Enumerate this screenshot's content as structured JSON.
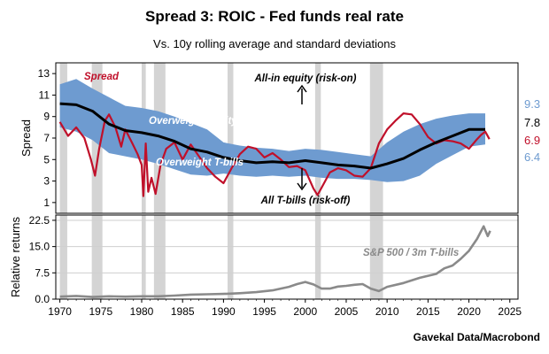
{
  "title": "Spread 3: ROIC - Fed funds real rate",
  "subtitle": "Vs. 10y rolling average and standard deviations",
  "source": "Gavekal Data/Macrobond",
  "colors": {
    "band": "#6e9bd0",
    "spread": "#c0102a",
    "average": "#000000",
    "recession": "#d4d4d4",
    "returns": "#8a8a8a",
    "band_label": "#ffffff",
    "returns_label": "#8a8a8a"
  },
  "latest_values": [
    {
      "value": "9.3",
      "color": "#6e9bd0"
    },
    {
      "value": "7.8",
      "color": "#000000"
    },
    {
      "value": "6.9",
      "color": "#c0102a"
    },
    {
      "value": "6.4",
      "color": "#6e9bd0"
    }
  ],
  "chart_data": [
    {
      "type": "line",
      "ylabel": "Spread",
      "ylim": [
        0,
        14
      ],
      "yticks": [
        1,
        3,
        5,
        7,
        9,
        11,
        13
      ],
      "xlim": [
        1969.5,
        2026
      ],
      "grid": false,
      "recessions": [
        [
          1970.0,
          1970.9
        ],
        [
          1973.9,
          1975.2
        ],
        [
          1980.0,
          1980.5
        ],
        [
          1981.5,
          1982.9
        ],
        [
          1990.5,
          1991.2
        ],
        [
          2001.2,
          2001.9
        ],
        [
          2007.9,
          2009.5
        ]
      ],
      "annotations": {
        "spread": "Spread",
        "risk_on": "All-in equity (risk-on)",
        "risk_off": "All T-bills (risk-off)",
        "overweight_equity": "Overweight equity",
        "overweight_tbills": "Overweight T-bills"
      },
      "series": [
        {
          "role": "average",
          "x": [
            1970,
            1972,
            1974,
            1976,
            1978,
            1980,
            1982,
            1984,
            1986,
            1988,
            1990,
            1992,
            1994,
            1996,
            1998,
            2000,
            2002,
            2004,
            2006,
            2008,
            2010,
            2012,
            2014,
            2016,
            2018,
            2020,
            2022
          ],
          "values": [
            10.2,
            10.1,
            9.5,
            8.3,
            7.7,
            7.5,
            7.2,
            6.7,
            6.0,
            5.7,
            5.2,
            4.9,
            4.7,
            4.8,
            4.7,
            4.9,
            4.7,
            4.5,
            4.4,
            4.2,
            4.6,
            5.1,
            5.9,
            6.6,
            7.2,
            7.8,
            7.8
          ]
        },
        {
          "role": "upper_band",
          "x": [
            1970,
            1972,
            1974,
            1976,
            1978,
            1980,
            1982,
            1984,
            1986,
            1988,
            1990,
            1992,
            1994,
            1996,
            1998,
            2000,
            2002,
            2004,
            2006,
            2008,
            2010,
            2012,
            2014,
            2016,
            2018,
            2020,
            2022
          ],
          "values": [
            12.0,
            12.5,
            11.6,
            10.8,
            10.0,
            9.8,
            9.5,
            9.0,
            8.4,
            7.8,
            6.6,
            6.3,
            6.1,
            6.0,
            5.8,
            6.0,
            5.9,
            5.7,
            5.5,
            5.3,
            6.6,
            7.6,
            8.3,
            8.8,
            9.1,
            9.3,
            9.3
          ]
        },
        {
          "role": "lower_band",
          "x": [
            1970,
            1972,
            1974,
            1976,
            1978,
            1980,
            1982,
            1984,
            1986,
            1988,
            1990,
            1992,
            1994,
            1996,
            1998,
            2000,
            2002,
            2004,
            2006,
            2008,
            2010,
            2012,
            2014,
            2016,
            2018,
            2020,
            2022
          ],
          "values": [
            8.0,
            7.6,
            6.8,
            5.6,
            5.3,
            5.0,
            4.6,
            4.1,
            3.6,
            3.5,
            3.7,
            3.5,
            3.4,
            3.5,
            3.4,
            3.5,
            3.3,
            3.2,
            3.2,
            3.1,
            2.9,
            3.0,
            3.5,
            4.6,
            5.4,
            6.2,
            6.4
          ]
        },
        {
          "role": "spread",
          "x": [
            1970,
            1971,
            1972,
            1973,
            1973.8,
            1974.3,
            1974.8,
            1975.5,
            1976,
            1976.8,
            1977.5,
            1978,
            1978.8,
            1979.5,
            1980,
            1980.2,
            1980.5,
            1980.8,
            1981.2,
            1981.7,
            1982.3,
            1983,
            1984,
            1985,
            1986,
            1987,
            1988,
            1989,
            1990,
            1991,
            1992,
            1993,
            1994,
            1995,
            1996,
            1997,
            1998,
            1999,
            2000,
            2001,
            2001.5,
            2002,
            2003,
            2004,
            2005,
            2006,
            2007,
            2008,
            2009,
            2010,
            2011,
            2012,
            2013,
            2014,
            2015,
            2016,
            2017,
            2018,
            2019,
            2020,
            2021,
            2021.5,
            2022,
            2022.5
          ],
          "values": [
            8.5,
            7.2,
            8.0,
            7.0,
            5.0,
            3.5,
            6.0,
            8.6,
            9.2,
            8.0,
            6.2,
            7.8,
            6.6,
            5.5,
            4.5,
            1.6,
            6.5,
            2.0,
            3.3,
            1.8,
            4.5,
            6.0,
            6.6,
            5.0,
            6.4,
            5.3,
            4.2,
            3.4,
            2.8,
            4.2,
            5.5,
            6.2,
            6.0,
            5.2,
            5.6,
            5.0,
            4.3,
            4.4,
            4.0,
            2.3,
            1.7,
            2.4,
            3.8,
            4.2,
            4.0,
            3.5,
            3.4,
            4.2,
            6.5,
            7.8,
            8.6,
            9.3,
            9.2,
            8.3,
            7.1,
            6.5,
            6.8,
            6.7,
            6.5,
            6.0,
            6.9,
            7.3,
            7.6,
            6.9
          ]
        }
      ]
    },
    {
      "type": "line",
      "ylabel": "Relative returns",
      "ylim": [
        0,
        24
      ],
      "yticks": [
        0.0,
        7.5,
        15.0,
        22.5
      ],
      "xticks": [
        1970,
        1975,
        1980,
        1985,
        1990,
        1995,
        2000,
        2005,
        2010,
        2015,
        2020,
        2025
      ],
      "xlim": [
        1969.5,
        2026
      ],
      "grid": true,
      "recessions": [
        [
          1970.0,
          1970.9
        ],
        [
          1973.9,
          1975.2
        ],
        [
          1980.0,
          1980.5
        ],
        [
          1981.5,
          1982.9
        ],
        [
          1990.5,
          1991.2
        ],
        [
          2001.2,
          2001.9
        ],
        [
          2007.9,
          2009.5
        ]
      ],
      "series": [
        {
          "name": "S&P 500 / 3m T-bills",
          "x": [
            1970,
            1972,
            1974,
            1976,
            1978,
            1980,
            1982,
            1984,
            1986,
            1988,
            1990,
            1992,
            1994,
            1996,
            1998,
            1999,
            2000,
            2001,
            2002,
            2003,
            2004,
            2005,
            2006,
            2007,
            2008,
            2009,
            2010,
            2012,
            2014,
            2016,
            2017,
            2018,
            2019,
            2020,
            2021,
            2021.8,
            2022.3,
            2022.6
          ],
          "values": [
            0.7,
            0.9,
            0.6,
            0.8,
            0.7,
            0.8,
            0.8,
            1.0,
            1.3,
            1.4,
            1.5,
            1.7,
            2.0,
            2.5,
            3.5,
            4.3,
            4.9,
            4.2,
            3.0,
            3.0,
            3.6,
            3.8,
            4.1,
            4.3,
            3.0,
            2.3,
            3.5,
            4.6,
            6.1,
            7.2,
            8.8,
            9.6,
            11.5,
            13.8,
            17.2,
            20.8,
            18.0,
            19.5
          ]
        }
      ]
    }
  ]
}
